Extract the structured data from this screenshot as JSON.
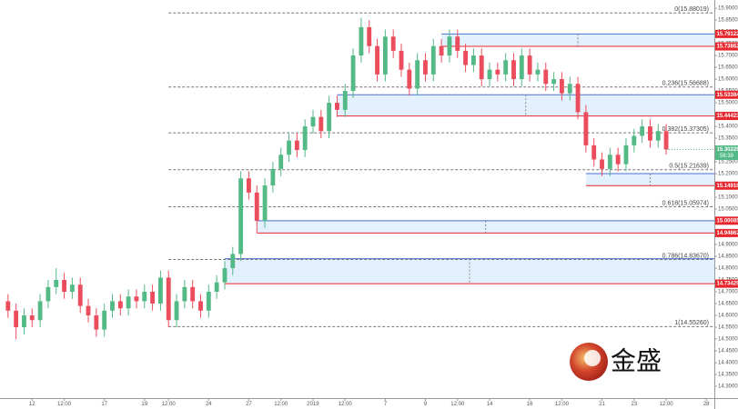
{
  "chart_data": {
    "type": "candlestick",
    "xlim": [
      -1,
      88
    ],
    "ylim": [
      14.25,
      15.935
    ],
    "xticks": [
      {
        "value": 3,
        "label": "12"
      },
      {
        "value": 7,
        "label": "12:00"
      },
      {
        "value": 12,
        "label": "17"
      },
      {
        "value": 17,
        "label": "19"
      },
      {
        "value": 20,
        "label": "12:00"
      },
      {
        "value": 25,
        "label": "24"
      },
      {
        "value": 30,
        "label": "27"
      },
      {
        "value": 34,
        "label": "12:00"
      },
      {
        "value": 38,
        "label": "2019"
      },
      {
        "value": 42,
        "label": "12:00"
      },
      {
        "value": 47,
        "label": "7"
      },
      {
        "value": 52,
        "label": "9"
      },
      {
        "value": 56,
        "label": "12:00"
      },
      {
        "value": 60,
        "label": "14"
      },
      {
        "value": 65,
        "label": "16"
      },
      {
        "value": 69,
        "label": "12:00"
      },
      {
        "value": 74,
        "label": "21"
      },
      {
        "value": 78,
        "label": "23"
      },
      {
        "value": 82,
        "label": "12:00"
      },
      {
        "value": 87,
        "label": "28"
      }
    ],
    "yticks": [
      {
        "value": 14.3,
        "label": "14.30000"
      },
      {
        "value": 14.35,
        "label": "14.35000"
      },
      {
        "value": 14.4,
        "label": "14.40000"
      },
      {
        "value": 14.45,
        "label": "14.45000"
      },
      {
        "value": 14.5,
        "label": "14.50000"
      },
      {
        "value": 14.55,
        "label": "14.55000"
      },
      {
        "value": 14.6,
        "label": "14.60000"
      },
      {
        "value": 14.65,
        "label": "14.65000"
      },
      {
        "value": 14.7,
        "label": "14.70000"
      },
      {
        "value": 14.75,
        "label": "14.75000"
      },
      {
        "value": 14.8,
        "label": "14.80000"
      },
      {
        "value": 14.85,
        "label": "14.85000"
      },
      {
        "value": 14.9,
        "label": "14.90000"
      },
      {
        "value": 14.95,
        "label": "14.95000"
      },
      {
        "value": 15.0,
        "label": "15.00000"
      },
      {
        "value": 15.05,
        "label": "15.05000"
      },
      {
        "value": 15.1,
        "label": "15.10000"
      },
      {
        "value": 15.15,
        "label": "15.15000"
      },
      {
        "value": 15.2,
        "label": "15.20000"
      },
      {
        "value": 15.25,
        "label": "15.25000"
      },
      {
        "value": 15.3,
        "label": "15.30000"
      },
      {
        "value": 15.35,
        "label": "15.35000"
      },
      {
        "value": 15.4,
        "label": "15.40000"
      },
      {
        "value": 15.45,
        "label": "15.45000"
      },
      {
        "value": 15.5,
        "label": "15.50000"
      },
      {
        "value": 15.55,
        "label": "15.55000"
      },
      {
        "value": 15.6,
        "label": "15.60000"
      },
      {
        "value": 15.65,
        "label": "15.65000"
      },
      {
        "value": 15.7,
        "label": "15.70000"
      },
      {
        "value": 15.75,
        "label": "15.75000"
      },
      {
        "value": 15.8,
        "label": "15.80000"
      },
      {
        "value": 15.85,
        "label": "15.85000"
      },
      {
        "value": 15.9,
        "label": "15.90000"
      }
    ],
    "up_color": "#53b987",
    "down_color": "#eb4d5c",
    "ohlc": [
      [
        14.66,
        14.69,
        14.59,
        14.62
      ],
      [
        14.62,
        14.65,
        14.5,
        14.55
      ],
      [
        14.55,
        14.63,
        14.52,
        14.6
      ],
      [
        14.6,
        14.63,
        14.55,
        14.58
      ],
      [
        14.58,
        14.69,
        14.55,
        14.66
      ],
      [
        14.66,
        14.75,
        14.63,
        14.72
      ],
      [
        14.72,
        14.8,
        14.69,
        14.75
      ],
      [
        14.75,
        14.78,
        14.67,
        14.7
      ],
      [
        14.7,
        14.76,
        14.67,
        14.73
      ],
      [
        14.73,
        14.76,
        14.61,
        14.64
      ],
      [
        14.64,
        14.67,
        14.57,
        14.6
      ],
      [
        14.6,
        14.63,
        14.51,
        14.54
      ],
      [
        14.54,
        14.65,
        14.51,
        14.62
      ],
      [
        14.62,
        14.69,
        14.59,
        14.66
      ],
      [
        14.66,
        14.69,
        14.6,
        14.63
      ],
      [
        14.63,
        14.71,
        14.6,
        14.68
      ],
      [
        14.68,
        14.71,
        14.63,
        14.66
      ],
      [
        14.66,
        14.73,
        14.63,
        14.7
      ],
      [
        14.7,
        14.73,
        14.62,
        14.65
      ],
      [
        14.65,
        14.79,
        14.62,
        14.76
      ],
      [
        14.76,
        14.79,
        14.55,
        14.58
      ],
      [
        14.58,
        14.69,
        14.55,
        14.66
      ],
      [
        14.66,
        14.75,
        14.63,
        14.72
      ],
      [
        14.72,
        14.75,
        14.63,
        14.66
      ],
      [
        14.66,
        14.69,
        14.59,
        14.62
      ],
      [
        14.62,
        14.73,
        14.59,
        14.7
      ],
      [
        14.7,
        14.77,
        14.67,
        14.74
      ],
      [
        14.74,
        14.83,
        14.71,
        14.8
      ],
      [
        14.8,
        14.89,
        14.77,
        14.86
      ],
      [
        14.86,
        15.21,
        14.83,
        15.18
      ],
      [
        15.18,
        15.21,
        15.09,
        15.12
      ],
      [
        15.12,
        15.15,
        14.95,
        15.0
      ],
      [
        15.0,
        15.18,
        14.97,
        15.15
      ],
      [
        15.15,
        15.25,
        15.12,
        15.22
      ],
      [
        15.22,
        15.31,
        15.19,
        15.28
      ],
      [
        15.28,
        15.37,
        15.25,
        15.34
      ],
      [
        15.34,
        15.37,
        15.27,
        15.3
      ],
      [
        15.3,
        15.43,
        15.27,
        15.4
      ],
      [
        15.4,
        15.47,
        15.37,
        15.44
      ],
      [
        15.44,
        15.47,
        15.35,
        15.38
      ],
      [
        15.38,
        15.53,
        15.35,
        15.5
      ],
      [
        15.5,
        15.53,
        15.44,
        15.47
      ],
      [
        15.47,
        15.58,
        15.44,
        15.55
      ],
      [
        15.55,
        15.73,
        15.52,
        15.7
      ],
      [
        15.7,
        15.86,
        15.67,
        15.82
      ],
      [
        15.82,
        15.85,
        15.71,
        15.74
      ],
      [
        15.74,
        15.77,
        15.59,
        15.62
      ],
      [
        15.62,
        15.81,
        15.59,
        15.78
      ],
      [
        15.78,
        15.81,
        15.69,
        15.72
      ],
      [
        15.72,
        15.75,
        15.61,
        15.64
      ],
      [
        15.64,
        15.67,
        15.53,
        15.56
      ],
      [
        15.56,
        15.71,
        15.53,
        15.68
      ],
      [
        15.68,
        15.71,
        15.59,
        15.62
      ],
      [
        15.62,
        15.77,
        15.59,
        15.74
      ],
      [
        15.74,
        15.77,
        15.67,
        15.7
      ],
      [
        15.7,
        15.81,
        15.67,
        15.78
      ],
      [
        15.78,
        15.81,
        15.69,
        15.72
      ],
      [
        15.72,
        15.75,
        15.63,
        15.66
      ],
      [
        15.66,
        15.73,
        15.63,
        15.7
      ],
      [
        15.7,
        15.73,
        15.57,
        15.6
      ],
      [
        15.6,
        15.67,
        15.57,
        15.64
      ],
      [
        15.64,
        15.67,
        15.59,
        15.62
      ],
      [
        15.62,
        15.71,
        15.59,
        15.68
      ],
      [
        15.68,
        15.71,
        15.57,
        15.6
      ],
      [
        15.6,
        15.73,
        15.57,
        15.7
      ],
      [
        15.7,
        15.73,
        15.59,
        15.62
      ],
      [
        15.62,
        15.67,
        15.59,
        15.64
      ],
      [
        15.64,
        15.67,
        15.55,
        15.58
      ],
      [
        15.58,
        15.63,
        15.55,
        15.6
      ],
      [
        15.6,
        15.63,
        15.51,
        15.54
      ],
      [
        15.54,
        15.61,
        15.51,
        15.58
      ],
      [
        15.58,
        15.61,
        15.43,
        15.46
      ],
      [
        15.46,
        15.49,
        15.29,
        15.32
      ],
      [
        15.32,
        15.35,
        15.23,
        15.26
      ],
      [
        15.26,
        15.29,
        15.19,
        15.22
      ],
      [
        15.22,
        15.31,
        15.19,
        15.28
      ],
      [
        15.28,
        15.31,
        15.21,
        15.24
      ],
      [
        15.24,
        15.35,
        15.21,
        15.32
      ],
      [
        15.32,
        15.39,
        15.29,
        15.36
      ],
      [
        15.36,
        15.43,
        15.33,
        15.4
      ],
      [
        15.4,
        15.43,
        15.31,
        15.34
      ],
      [
        15.34,
        15.41,
        15.31,
        15.38
      ],
      [
        15.38,
        15.41,
        15.28,
        15.30228
      ]
    ],
    "fib_start": 20,
    "fib_levels": [
      {
        "value": 15.88019,
        "label": "0(15.88019)"
      },
      {
        "value": 15.56688,
        "label": "0.236(15.56688)"
      },
      {
        "value": 15.37305,
        "label": "0.382(15.37305)"
      },
      {
        "value": 15.21639,
        "label": "0.5(15.21639)"
      },
      {
        "value": 15.05974,
        "label": "0.618(15.05974)"
      },
      {
        "value": 14.8367,
        "label": "0.786(14.83670)"
      },
      {
        "value": 14.5526,
        "label": "1(14.55260)"
      }
    ],
    "zones": [
      {
        "high": 15.79122,
        "low": 15.73862,
        "start": 54
      },
      {
        "high": 15.53384,
        "low": 15.44423,
        "start": 41
      },
      {
        "high": 15.2,
        "low": 15.14916,
        "start": 72
      },
      {
        "high": 15.00085,
        "low": 14.94862,
        "start": 31
      },
      {
        "high": 14.84,
        "low": 14.73429,
        "start": 27
      }
    ],
    "price_flags": [
      15.79122,
      15.73862,
      15.53384,
      15.44423,
      15.14916,
      15.00085,
      14.94862,
      14.73429
    ],
    "flag_color": "#e8262d",
    "current_price": {
      "value": 15.30228,
      "countdown": "56:39",
      "color": "#53b987"
    }
  },
  "watermark": {
    "text": "金盛"
  }
}
